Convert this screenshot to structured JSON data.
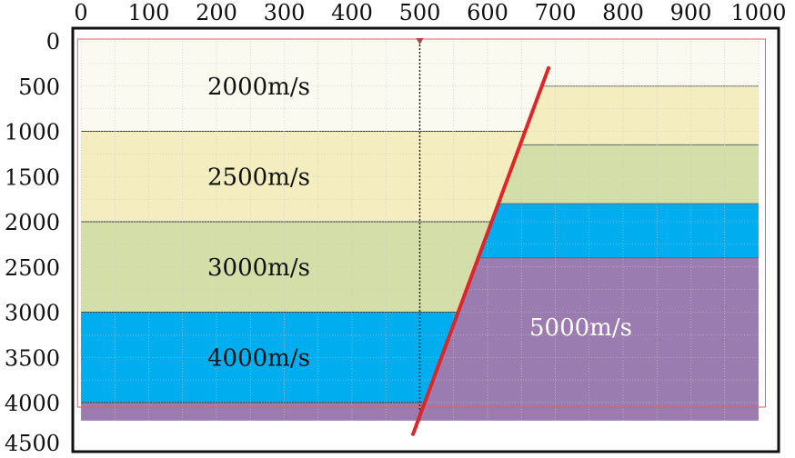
{
  "x_axis": {
    "ticks": [
      "0",
      "100",
      "200",
      "300",
      "400",
      "500",
      "600",
      "700",
      "800",
      "900",
      "1000"
    ]
  },
  "y_axis": {
    "ticks": [
      "0",
      "500",
      "1000",
      "1500",
      "2000",
      "2500",
      "3000",
      "3500",
      "4000",
      "4500"
    ]
  },
  "layers": {
    "left": [
      {
        "velocity_label": "2000m/s",
        "top": 0,
        "bottom": 1000,
        "color": "#fbfaf1"
      },
      {
        "velocity_label": "2500m/s",
        "top": 1000,
        "bottom": 2000,
        "color": "#f4edbf"
      },
      {
        "velocity_label": "3000m/s",
        "top": 2000,
        "bottom": 3000,
        "color": "#d3dea9"
      },
      {
        "velocity_label": "4000m/s",
        "top": 3000,
        "bottom": 4000,
        "color": "#00aeef"
      },
      {
        "velocity_label": "",
        "top": 4000,
        "bottom": 4200,
        "color": "#9b7cb0"
      }
    ],
    "right": [
      {
        "velocity_label": "",
        "top": 0,
        "bottom": 500,
        "color": "#fbfaf1"
      },
      {
        "velocity_label": "",
        "top": 500,
        "bottom": 1150,
        "color": "#f4edbf"
      },
      {
        "velocity_label": "",
        "top": 1150,
        "bottom": 1800,
        "color": "#d3dea9"
      },
      {
        "velocity_label": "",
        "top": 1800,
        "bottom": 2400,
        "color": "#00aeef"
      },
      {
        "velocity_label": "5000m/s",
        "top": 2400,
        "bottom": 4200,
        "color": "#9b7cb0"
      }
    ]
  },
  "fault": {
    "x_top": 690,
    "y_top": 300,
    "x_bottom": 490,
    "y_bottom": 4350,
    "color": "#e0252a"
  },
  "colors": {
    "frame": "#111111",
    "grid": "#c8c8c8",
    "red_border": "#e06060",
    "survey_line": "#222222"
  }
}
